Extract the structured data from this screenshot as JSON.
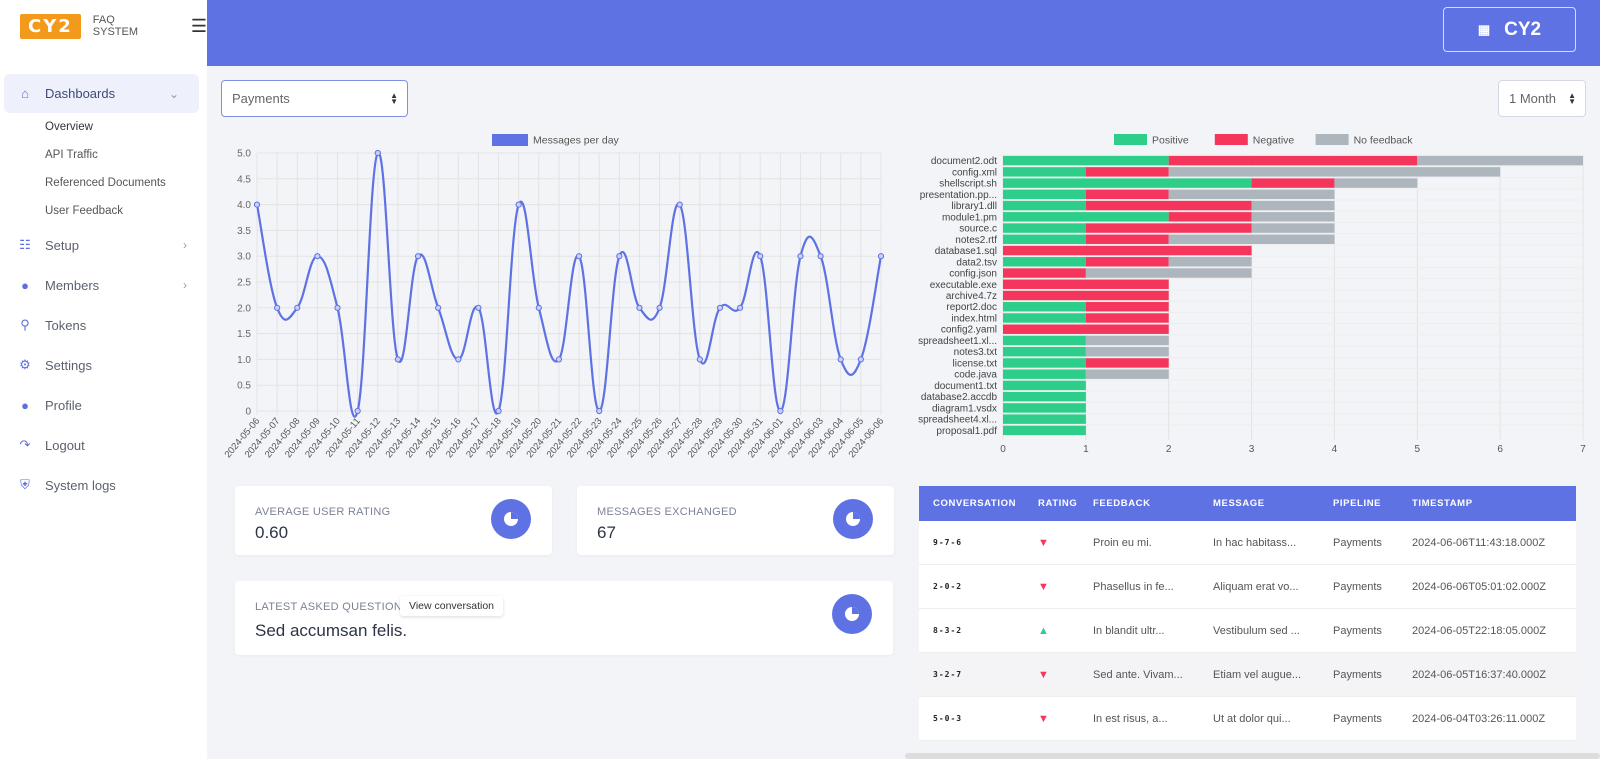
{
  "brand": {
    "logo": "CY2",
    "subtitle": "FAQ SYSTEM"
  },
  "header": {
    "user_label": "CY2"
  },
  "sidebar": {
    "items": [
      {
        "label": "Dashboards",
        "icon": "home-icon"
      },
      {
        "label": "Setup",
        "icon": "setup-icon"
      },
      {
        "label": "Members",
        "icon": "user-icon"
      },
      {
        "label": "Tokens",
        "icon": "key-icon"
      },
      {
        "label": "Settings",
        "icon": "gear-icon"
      },
      {
        "label": "Profile",
        "icon": "user-icon"
      },
      {
        "label": "Logout",
        "icon": "logout-icon"
      },
      {
        "label": "System logs",
        "icon": "shield-icon"
      }
    ],
    "dashboard_subitems": [
      "Overview",
      "API Traffic",
      "Referenced Documents",
      "User Feedback"
    ]
  },
  "controls": {
    "pipeline_selected": "Payments",
    "period_selected": "1 Month"
  },
  "cards": {
    "avg_rating_label": "AVERAGE USER RATING",
    "avg_rating_value": "0.60",
    "messages_label": "MESSAGES EXCHANGED",
    "messages_value": "67",
    "latest_label": "LATEST ASKED QUESTION",
    "latest_value": "Sed accumsan felis.",
    "view_button": "View conversation"
  },
  "table": {
    "headers": [
      "CONVERSATION",
      "RATING",
      "FEEDBACK",
      "MESSAGE",
      "PIPELINE",
      "TIMESTAMP"
    ],
    "rows": [
      {
        "conversation": "9-7-6",
        "rating": "negative",
        "feedback": "Proin eu mi.",
        "message": "In hac habitass...",
        "pipeline": "Payments",
        "timestamp": "2024-06-06T11:43:18.000Z"
      },
      {
        "conversation": "2-0-2",
        "rating": "negative",
        "feedback": "Phasellus in fe...",
        "message": "Aliquam erat vo...",
        "pipeline": "Payments",
        "timestamp": "2024-06-06T05:01:02.000Z"
      },
      {
        "conversation": "8-3-2",
        "rating": "positive",
        "feedback": "In blandit ultr...",
        "message": "Vestibulum sed ...",
        "pipeline": "Payments",
        "timestamp": "2024-06-05T22:18:05.000Z"
      },
      {
        "conversation": "3-2-7",
        "rating": "negative",
        "feedback": "Sed ante. Vivam...",
        "message": "Etiam vel augue...",
        "pipeline": "Payments",
        "timestamp": "2024-06-05T16:37:40.000Z"
      },
      {
        "conversation": "5-0-3",
        "rating": "negative",
        "feedback": "In est risus, a...",
        "message": "Ut at dolor qui...",
        "pipeline": "Payments",
        "timestamp": "2024-06-04T03:26:11.000Z"
      }
    ]
  },
  "colors": {
    "accent": "#5e72e4",
    "positive": "#2dce89",
    "negative": "#f5365c",
    "no_feedback": "#adb5bd"
  },
  "chart_data": [
    {
      "type": "line",
      "series": [
        {
          "name": "Messages per day",
          "values": [
            4,
            2,
            2,
            3,
            2,
            0,
            5,
            1,
            3,
            2,
            1,
            2,
            0,
            4,
            2,
            1,
            3,
            0,
            3,
            2,
            2,
            4,
            1,
            2,
            2,
            3,
            0,
            3,
            3,
            1,
            1,
            3
          ]
        }
      ],
      "x": [
        "2024-05-06",
        "2024-05-07",
        "2024-05-08",
        "2024-05-09",
        "2024-05-10",
        "2024-05-11",
        "2024-05-12",
        "2024-05-13",
        "2024-05-14",
        "2024-05-15",
        "2024-05-16",
        "2024-05-17",
        "2024-05-18",
        "2024-05-19",
        "2024-05-20",
        "2024-05-21",
        "2024-05-22",
        "2024-05-23",
        "2024-05-24",
        "2024-05-25",
        "2024-05-26",
        "2024-05-27",
        "2024-05-28",
        "2024-05-29",
        "2024-05-30",
        "2024-05-31",
        "2024-06-01",
        "2024-06-02",
        "2024-06-03",
        "2024-06-04",
        "2024-06-05",
        "2024-06-06"
      ],
      "ylim": [
        0,
        5
      ],
      "yticks": [
        "0",
        "0.5",
        "1.0",
        "1.5",
        "2.0",
        "2.5",
        "3.0",
        "3.5",
        "4.0",
        "4.5",
        "5.0"
      ],
      "legend": "top",
      "grid": true
    },
    {
      "type": "bar",
      "orientation": "horizontal-stacked",
      "categories": [
        "document2.odt",
        "config.xml",
        "shellscript.sh",
        "presentation.pp...",
        "library1.dll",
        "module1.pm",
        "source.c",
        "notes2.rtf",
        "database1.sql",
        "data2.tsv",
        "config.json",
        "executable.exe",
        "archive4.7z",
        "report2.doc",
        "index.html",
        "config2.yaml",
        "spreadsheet1.xl...",
        "notes3.txt",
        "license.txt",
        "code.java",
        "document1.txt",
        "database2.accdb",
        "diagram1.vsdx",
        "spreadsheet4.xl...",
        "proposal1.pdf"
      ],
      "series": [
        {
          "name": "Positive",
          "values": [
            2,
            1,
            3,
            1,
            1,
            2,
            1,
            1,
            0,
            1,
            0,
            0,
            0,
            1,
            1,
            0,
            1,
            1,
            1,
            1,
            1,
            1,
            1,
            1,
            1
          ]
        },
        {
          "name": "Negative",
          "values": [
            3,
            1,
            1,
            1,
            2,
            1,
            2,
            1,
            3,
            1,
            1,
            2,
            2,
            1,
            1,
            2,
            0,
            0,
            1,
            0,
            0,
            0,
            0,
            0,
            0
          ]
        },
        {
          "name": "No feedback",
          "values": [
            2,
            4,
            1,
            2,
            1,
            1,
            1,
            2,
            0,
            1,
            2,
            0,
            0,
            0,
            0,
            0,
            1,
            1,
            0,
            1,
            0,
            0,
            0,
            0,
            0
          ]
        }
      ],
      "xlim": [
        0,
        7
      ],
      "xticks": [
        "0",
        "1",
        "2",
        "3",
        "4",
        "5",
        "6",
        "7"
      ],
      "legend": "top",
      "grid": true
    }
  ]
}
